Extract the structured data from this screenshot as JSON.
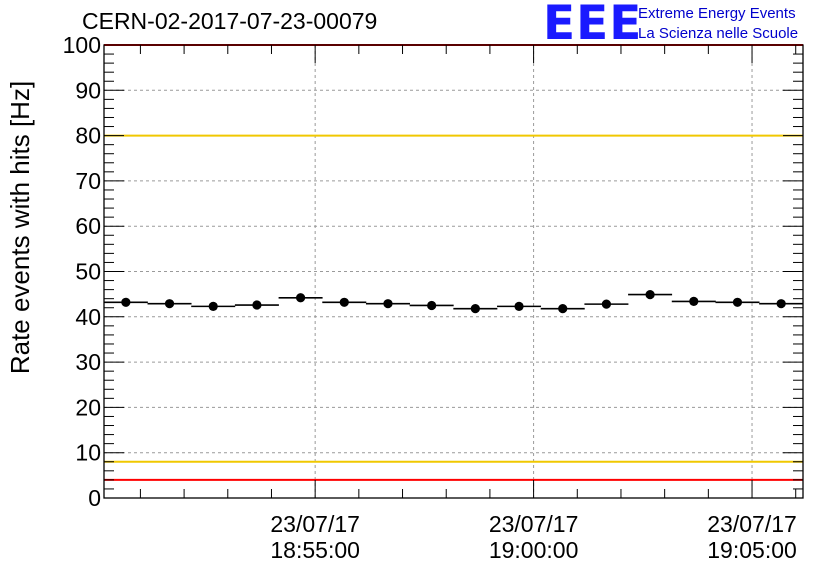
{
  "run_title": "CERN-02-2017-07-23-00079",
  "logo": {
    "mark": "EEE",
    "line1": "Extreme Energy Events",
    "line2": "La Scienza nelle Scuole",
    "color": "#0000cc"
  },
  "chart_data": {
    "type": "scatter",
    "ylabel": "Rate events with hits [Hz]",
    "ylim": [
      0,
      100
    ],
    "yticks": [
      0,
      10,
      20,
      30,
      40,
      50,
      60,
      70,
      80,
      90,
      100
    ],
    "xlim": [
      "2017-07-23 18:50:10",
      "2017-07-23 19:06:10"
    ],
    "xticks": [
      {
        "time": "2017-07-23 18:55:00",
        "date_label": "23/07/17",
        "time_label": "18:55:00"
      },
      {
        "time": "2017-07-23 19:00:00",
        "date_label": "23/07/17",
        "time_label": "19:00:00"
      },
      {
        "time": "2017-07-23 19:05:00",
        "date_label": "23/07/17",
        "time_label": "19:05:00"
      }
    ],
    "grid": true,
    "reference_lines": [
      {
        "y": 100,
        "color": "#ff0000"
      },
      {
        "y": 80,
        "color": "#f0c800"
      },
      {
        "y": 8,
        "color": "#f0c800"
      },
      {
        "y": 4,
        "color": "#ff0000"
      }
    ],
    "series": [
      {
        "color": "#000000",
        "x": [
          "2017-07-23 18:50:40",
          "2017-07-23 18:51:40",
          "2017-07-23 18:52:40",
          "2017-07-23 18:53:40",
          "2017-07-23 18:54:40",
          "2017-07-23 18:55:40",
          "2017-07-23 18:56:40",
          "2017-07-23 18:57:40",
          "2017-07-23 18:58:40",
          "2017-07-23 18:59:40",
          "2017-07-23 19:00:40",
          "2017-07-23 19:01:40",
          "2017-07-23 19:02:40",
          "2017-07-23 19:03:40",
          "2017-07-23 19:04:40",
          "2017-07-23 19:05:40"
        ],
        "values": [
          43.2,
          42.9,
          42.3,
          42.6,
          44.2,
          43.2,
          42.9,
          42.5,
          41.8,
          42.3,
          41.8,
          42.8,
          44.9,
          43.4,
          43.2,
          42.9
        ]
      }
    ]
  }
}
